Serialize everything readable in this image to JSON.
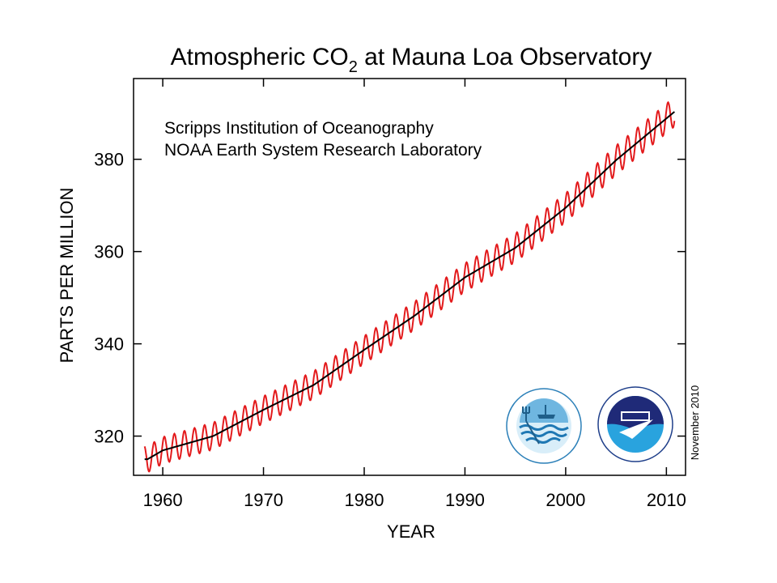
{
  "chart_data": {
    "type": "line",
    "title_main": "Atmospheric CO",
    "title_sub": "2",
    "title_rest": " at Mauna Loa Observatory",
    "xlabel": "YEAR",
    "ylabel": "PARTS PER MILLION",
    "annotations": [
      "Scripps Institution of Oceanography",
      "NOAA Earth System Research Laboratory"
    ],
    "date_note": "November 2010",
    "xlim": [
      1957.1,
      2011.9
    ],
    "ylim": [
      311.5,
      397.5
    ],
    "x_ticks": [
      1960,
      1970,
      1980,
      1990,
      2000,
      2010
    ],
    "y_ticks": [
      320,
      340,
      360,
      380
    ],
    "x_range_data": [
      1958.2,
      2010.8
    ],
    "logos": [
      "Scripps Institution of Oceanography UCSD logo",
      "NOAA logo"
    ],
    "series": [
      {
        "kind": "monthly",
        "color": "#e31a1c",
        "seasonal_amplitude_ppm": 3.2
      },
      {
        "kind": "trend",
        "color": "#000000",
        "x": [
          1958.5,
          1960,
          1965,
          1970,
          1975,
          1980,
          1985,
          1990,
          1995,
          2000,
          2005,
          2010.8
        ],
        "y": [
          315.0,
          316.9,
          320.0,
          325.7,
          331.1,
          338.7,
          346.1,
          354.4,
          360.8,
          369.5,
          379.8,
          390.3
        ]
      }
    ]
  }
}
